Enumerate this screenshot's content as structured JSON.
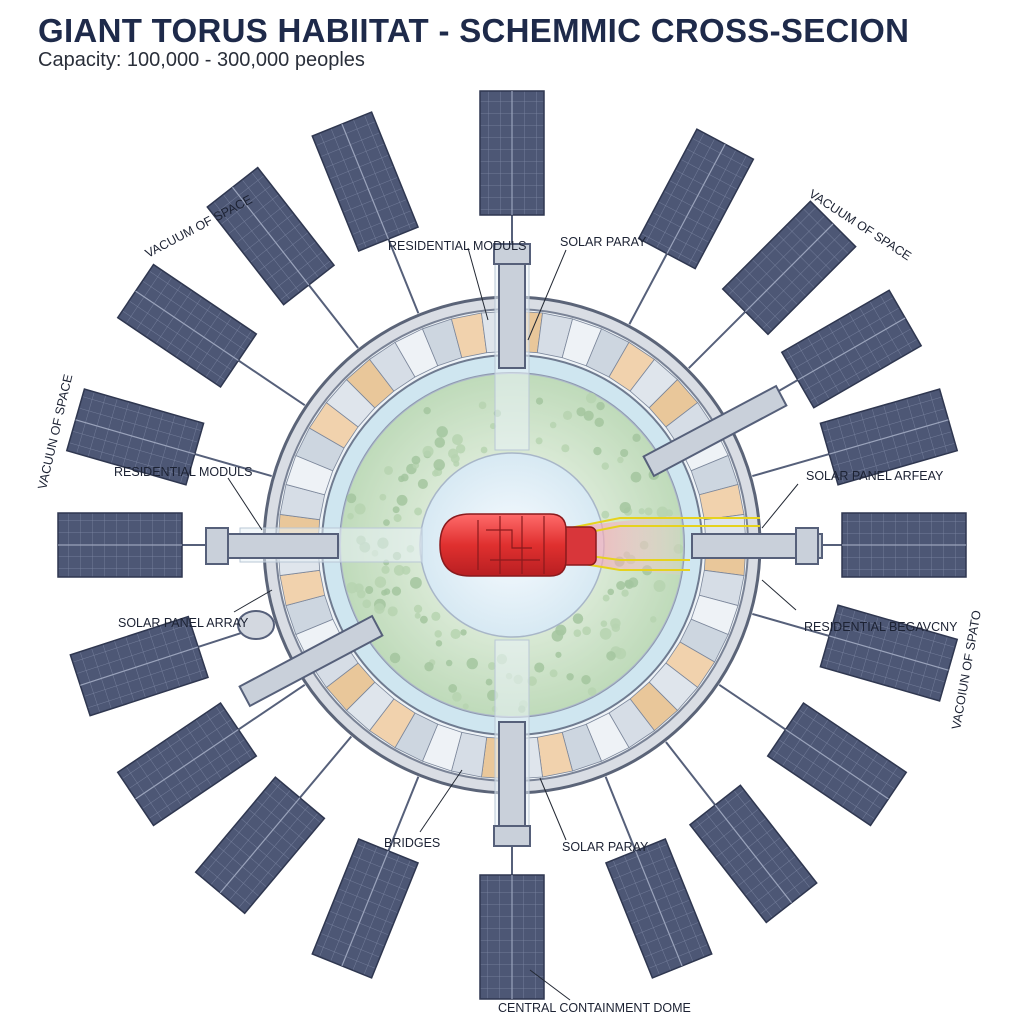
{
  "title": "GIANT TORUS HABIITAT - SCHEMMIC CROSS-SECION",
  "subtitle": "Capacity: 100,000 - 300,000 peoples",
  "labels": {
    "residential_top": "RESIDENTIAL MODULS",
    "solar_top": "SOLAR PARAY",
    "residential_left": "RESIDENTIAL MODULS",
    "solar_left": "SOLAR PANEL ARRAY",
    "solar_right": "SOLAR PANEL ARFEAY",
    "residential_right": "RESIDENTIAL BEGAVCNY",
    "bridges": "BRIDGES",
    "solar_bottom": "SOLAR PARAY",
    "central_dome": "CENTRAL CONTAINMENT DOME"
  },
  "vacuum": {
    "top_left": "VACUUM OF SPACE",
    "top_right": "VACUUM OF SPACE",
    "left": "VACUUN OF SPACE",
    "right": "VACOIUN OF SPATO"
  },
  "colors": {
    "panel": "#4a5470",
    "panel_grid": "#7a84a0",
    "ring": "#cfe6f0",
    "park": "#c8e0b8",
    "core": "#e23a3a",
    "title": "#1e2a4a"
  }
}
